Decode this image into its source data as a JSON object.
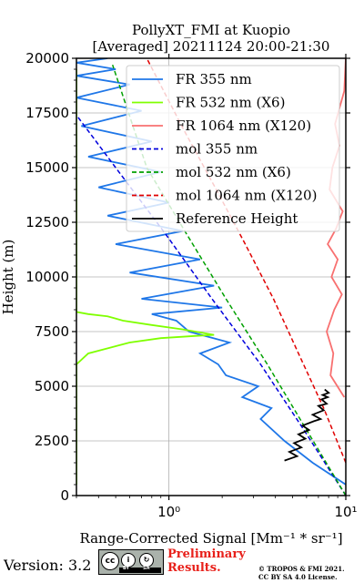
{
  "chart_data": {
    "type": "line",
    "title": "PollyXT_FMI at Kuopio",
    "subtitle": "[Averaged] 20211124 20:00-21:30",
    "xlabel": "Range-Corrected Signal [Mm⁻¹ * sr⁻¹]",
    "ylabel": "Height (m)",
    "xscale": "log",
    "xlim": [
      0.3,
      10
    ],
    "ylim": [
      0,
      20000
    ],
    "xticks": [
      1,
      10
    ],
    "xtick_labels": [
      "10⁰",
      "10¹"
    ],
    "yticks": [
      0,
      2500,
      5000,
      7500,
      10000,
      12500,
      15000,
      17500,
      20000
    ],
    "ytick_labels": [
      "0",
      "2500",
      "5000",
      "7500",
      "10000",
      "12500",
      "15000",
      "17500",
      "20000"
    ],
    "grid": true,
    "legend_position": "top-right",
    "series": [
      {
        "name": "FR 355 nm",
        "color": "#1f77e8",
        "style": "solid",
        "x": [
          10,
          6.5,
          4.5,
          3.3,
          3.8,
          2.6,
          3.2,
          2.1,
          1.9,
          1.5,
          2.2,
          1.3,
          1.1,
          0.8,
          2.0,
          0.7,
          1.8,
          0.6,
          1.5,
          0.5,
          1.2,
          0.45,
          1.0,
          0.4,
          0.9,
          0.35,
          0.8,
          0.32,
          0.7,
          0.3,
          0.6,
          0.3,
          0.5,
          0.3,
          0.45
        ],
        "y": [
          500,
          1500,
          2500,
          3500,
          4000,
          4500,
          5000,
          5500,
          6000,
          6500,
          7000,
          7500,
          8000,
          8300,
          8600,
          9000,
          9600,
          10200,
          10800,
          11500,
          12100,
          12800,
          13400,
          14100,
          14800,
          15500,
          16200,
          16900,
          17600,
          18200,
          18800,
          19200,
          19500,
          19800,
          20000
        ]
      },
      {
        "name": "FR 532 nm (X6)",
        "color": "#7fff00",
        "style": "solid",
        "x": [
          0.3,
          0.3,
          0.35,
          0.6,
          0.9,
          1.4,
          1.8,
          1.2,
          0.8,
          0.55,
          0.45,
          0.35,
          0.3,
          0.3
        ],
        "y": [
          500,
          6000,
          6500,
          7000,
          7200,
          7300,
          7350,
          7600,
          7800,
          8000,
          8200,
          8300,
          8400,
          19500
        ]
      },
      {
        "name": "FR 1064 nm (X120)",
        "color": "#f87070",
        "style": "solid",
        "x": [
          9.8,
          8.2,
          8.5,
          7.8,
          8.6,
          9.5,
          8.3,
          9.0,
          7.9,
          8.8,
          9.6,
          8.1,
          8.4,
          9.2,
          8.7,
          9.8,
          10
        ],
        "y": [
          4500,
          5500,
          6500,
          7500,
          8500,
          9200,
          10000,
          10800,
          11500,
          12200,
          13000,
          14000,
          15000,
          16000,
          17000,
          18500,
          20000
        ]
      },
      {
        "name": "mol 355 nm",
        "color": "#0000dd",
        "style": "dashed",
        "x": [
          10,
          5.8,
          3.3,
          1.75,
          0.95,
          0.5,
          0.3
        ],
        "y": [
          0,
          3000,
          6000,
          9000,
          12000,
          15000,
          17400
        ]
      },
      {
        "name": "mol 532 nm (X6)",
        "color": "#00a000",
        "style": "dashed",
        "x": [
          10,
          6.0,
          3.6,
          2.1,
          1.25,
          0.75,
          0.48
        ],
        "y": [
          0,
          3000,
          6000,
          9000,
          12000,
          15000,
          19700
        ]
      },
      {
        "name": "mol 1064 nm (X120)",
        "color": "#e00000",
        "style": "dashed",
        "x": [
          10,
          7.5,
          5.4,
          3.9,
          2.7,
          1.85,
          1.2,
          0.75
        ],
        "y": [
          1500,
          4000,
          6500,
          9000,
          11500,
          14000,
          16800,
          20000
        ]
      },
      {
        "name": "Reference Height",
        "color": "#000000",
        "style": "solid",
        "x": [
          4.5,
          5.3,
          4.8,
          5.6,
          5.1,
          5.9,
          5.4,
          6.2,
          5.7,
          6.6,
          7.2,
          6.5,
          7.5,
          7.0,
          7.8,
          7.3,
          7.9,
          7.4,
          8.0,
          7.6
        ],
        "y": [
          1600,
          1800,
          2000,
          2200,
          2400,
          2600,
          2800,
          3000,
          3200,
          3400,
          3500,
          3700,
          3900,
          4100,
          4200,
          4400,
          4500,
          4600,
          4700,
          4850
        ]
      }
    ]
  },
  "footer": {
    "version": "Version: 3.2",
    "license_badge": [
      "cc",
      "BY",
      "SA"
    ],
    "preliminary": [
      "Preliminary",
      "Results."
    ],
    "copyright": [
      "© TROPOS & FMI 2021.",
      "CC BY SA 4.0 License."
    ]
  }
}
